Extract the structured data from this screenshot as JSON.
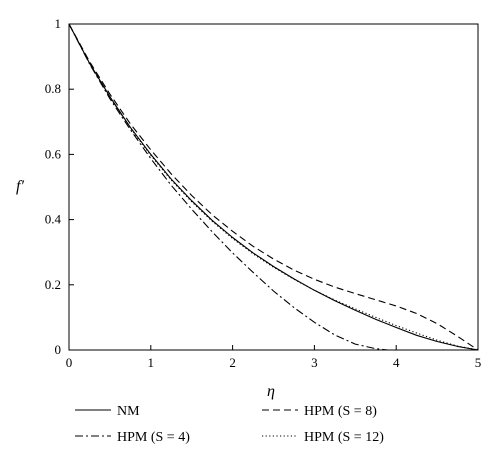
{
  "chart_data": {
    "type": "line",
    "title": "",
    "xlabel": "η",
    "ylabel": "f′",
    "xlim": [
      0,
      5
    ],
    "ylim": [
      0,
      1
    ],
    "x_ticks": [
      "0",
      "1",
      "2",
      "3",
      "4",
      "5"
    ],
    "y_ticks": [
      "0",
      "0.2",
      "0.4",
      "0.6",
      "0.8",
      "1"
    ],
    "grid": false,
    "legend_position": "bottom",
    "series": [
      {
        "name": "NM",
        "dash": "solid",
        "x": [
          0,
          0.25,
          0.5,
          0.75,
          1,
          1.25,
          1.5,
          1.75,
          2,
          2.25,
          2.5,
          2.75,
          3,
          3.25,
          3.5,
          3.75,
          4,
          4.25,
          4.5,
          4.75,
          5
        ],
        "y": [
          1,
          0.88,
          0.777,
          0.683,
          0.6,
          0.524,
          0.458,
          0.398,
          0.345,
          0.298,
          0.256,
          0.218,
          0.183,
          0.151,
          0.122,
          0.094,
          0.069,
          0.045,
          0.026,
          0.011,
          0
        ]
      },
      {
        "name": "HPM (S = 4)",
        "dash": "dashdot",
        "x": [
          0,
          0.25,
          0.5,
          0.75,
          1,
          1.25,
          1.5,
          1.75,
          2,
          2.25,
          2.5,
          2.75,
          3,
          3.25,
          3.5,
          3.75,
          3.9
        ],
        "y": [
          1,
          0.878,
          0.771,
          0.676,
          0.587,
          0.505,
          0.432,
          0.363,
          0.298,
          0.238,
          0.181,
          0.13,
          0.085,
          0.046,
          0.018,
          0.004,
          0
        ]
      },
      {
        "name": "HPM (S = 8)",
        "dash": "dashed",
        "x": [
          0,
          0.25,
          0.5,
          0.75,
          1,
          1.25,
          1.5,
          1.75,
          2,
          2.25,
          2.5,
          2.75,
          3,
          3.25,
          3.5,
          3.75,
          4,
          4.25,
          4.5,
          4.75,
          5
        ],
        "y": [
          1,
          0.885,
          0.785,
          0.694,
          0.614,
          0.54,
          0.474,
          0.415,
          0.364,
          0.318,
          0.279,
          0.245,
          0.217,
          0.193,
          0.173,
          0.154,
          0.135,
          0.112,
          0.081,
          0.042,
          0
        ]
      },
      {
        "name": "HPM (S = 12)",
        "dash": "dotted",
        "x": [
          0,
          0.25,
          0.5,
          0.75,
          1,
          1.25,
          1.5,
          1.75,
          2,
          2.25,
          2.5,
          2.75,
          3,
          3.25,
          3.5,
          3.75,
          4,
          4.25,
          4.5,
          4.75,
          5
        ],
        "y": [
          1,
          0.879,
          0.775,
          0.681,
          0.597,
          0.521,
          0.455,
          0.395,
          0.342,
          0.295,
          0.254,
          0.217,
          0.183,
          0.153,
          0.126,
          0.1,
          0.075,
          0.052,
          0.03,
          0.012,
          0
        ]
      }
    ]
  }
}
